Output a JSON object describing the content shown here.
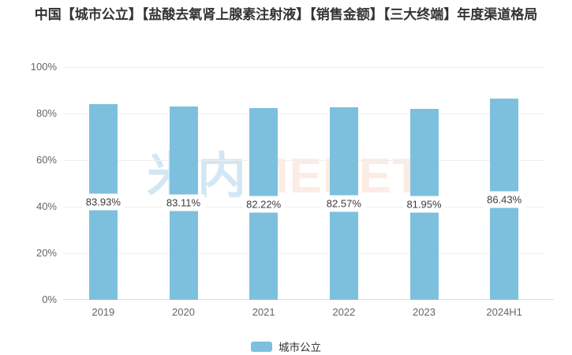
{
  "chart_data": {
    "type": "bar",
    "title": "中国【城市公立】【盐酸去氧肾上腺素注射液】【销售金额】【三大终端】年度渠道格局",
    "categories": [
      "2019",
      "2020",
      "2021",
      "2022",
      "2023",
      "2024H1"
    ],
    "series": [
      {
        "name": "城市公立",
        "values": [
          83.93,
          83.11,
          82.22,
          82.57,
          81.95,
          86.43
        ],
        "color": "#7dc0dd"
      }
    ],
    "value_labels": [
      "83.93%",
      "83.11%",
      "82.22%",
      "82.57%",
      "81.95%",
      "86.43%"
    ],
    "ylabel": "",
    "xlabel": "",
    "ylim": [
      0,
      100
    ],
    "yticks": [
      0,
      20,
      40,
      60,
      80,
      100
    ],
    "ytick_suffix": "%",
    "grid": true,
    "legend_position": "bottom"
  },
  "watermark": {
    "cn": "米内",
    "en": "MENET"
  },
  "colors": {
    "bar": "#7dc0dd",
    "grid_line": "#eeeeee",
    "axis_line": "#d7dce2",
    "axis_text": "#666666",
    "value_label_text": "#3b3b3b",
    "value_label_bg": "#ffffff",
    "title_text": "#333333",
    "watermark_cn": "rgba(105,175,215,0.30)",
    "watermark_en": "rgba(242,140,88,0.17)"
  }
}
